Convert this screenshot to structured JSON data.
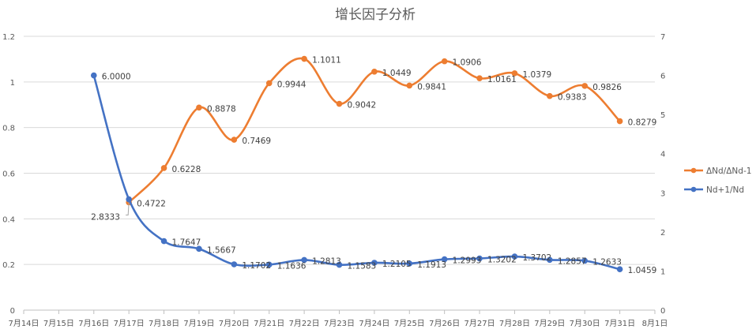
{
  "chart_data": {
    "type": "line",
    "title": "增长因子分析",
    "x_ticks": [
      "7月14日",
      "7月15日",
      "7月16日",
      "7月17日",
      "7月18日",
      "7月19日",
      "7月20日",
      "7月21日",
      "7月22日",
      "7月23日",
      "7月24日",
      "7月25日",
      "7月26日",
      "7月27日",
      "7月28日",
      "7月29日",
      "7月30日",
      "7月31日",
      "8月1日"
    ],
    "y_left": {
      "ticks": [
        "0",
        "0.2",
        "0.4",
        "0.6",
        "0.8",
        "1",
        "1.2"
      ],
      "range": [
        0,
        1.2
      ]
    },
    "y_right": {
      "ticks": [
        "0",
        "1",
        "2",
        "3",
        "4",
        "5",
        "6",
        "7"
      ],
      "range": [
        0,
        7
      ]
    },
    "grid": true,
    "legend_position": "right",
    "series": [
      {
        "name": "ΔNd/ΔNd-1",
        "axis": "left",
        "color": "#ed7d31",
        "categories": [
          "7月17日",
          "7月18日",
          "7月19日",
          "7月20日",
          "7月21日",
          "7月22日",
          "7月23日",
          "7月24日",
          "7月25日",
          "7月26日",
          "7月27日",
          "7月28日",
          "7月29日",
          "7月30日",
          "7月31日"
        ],
        "values": [
          0.4722,
          0.6228,
          0.8878,
          0.7469,
          0.9944,
          1.1011,
          0.9042,
          1.0449,
          0.9841,
          1.0906,
          1.0161,
          1.0379,
          0.9383,
          0.9826,
          0.8279
        ],
        "labels": [
          "0.4722",
          "0.6228",
          "0.8878",
          "0.7469",
          "0.9944",
          "1.1011",
          "0.9042",
          "1.0449",
          "0.9841",
          "1.0906",
          "1.0161",
          "1.0379",
          "0.9383",
          "0.9826",
          "0.8279"
        ]
      },
      {
        "name": "Nd+1/Nd",
        "axis": "right",
        "color": "#4472c4",
        "categories": [
          "7月16日",
          "7月17日",
          "7月18日",
          "7月19日",
          "7月20日",
          "7月21日",
          "7月22日",
          "7月23日",
          "7月24日",
          "7月25日",
          "7月26日",
          "7月27日",
          "7月28日",
          "7月29日",
          "7月30日",
          "7月31日"
        ],
        "values": [
          6.0,
          2.8333,
          1.7647,
          1.5667,
          1.1702,
          1.1636,
          1.2813,
          1.1583,
          1.2105,
          1.1913,
          1.2993,
          1.3202,
          1.3702,
          1.2857,
          1.2633,
          1.0459
        ],
        "labels": [
          "6.0000",
          "2.8333",
          "1.7647",
          "1.5667",
          "1.1702",
          "1.1636",
          "1.2813",
          "1.1583",
          "1.2105",
          "1.1913",
          "1.2993",
          "1.3202",
          "1.3702",
          "1.2857",
          "1.2633",
          "1.0459"
        ]
      }
    ]
  }
}
